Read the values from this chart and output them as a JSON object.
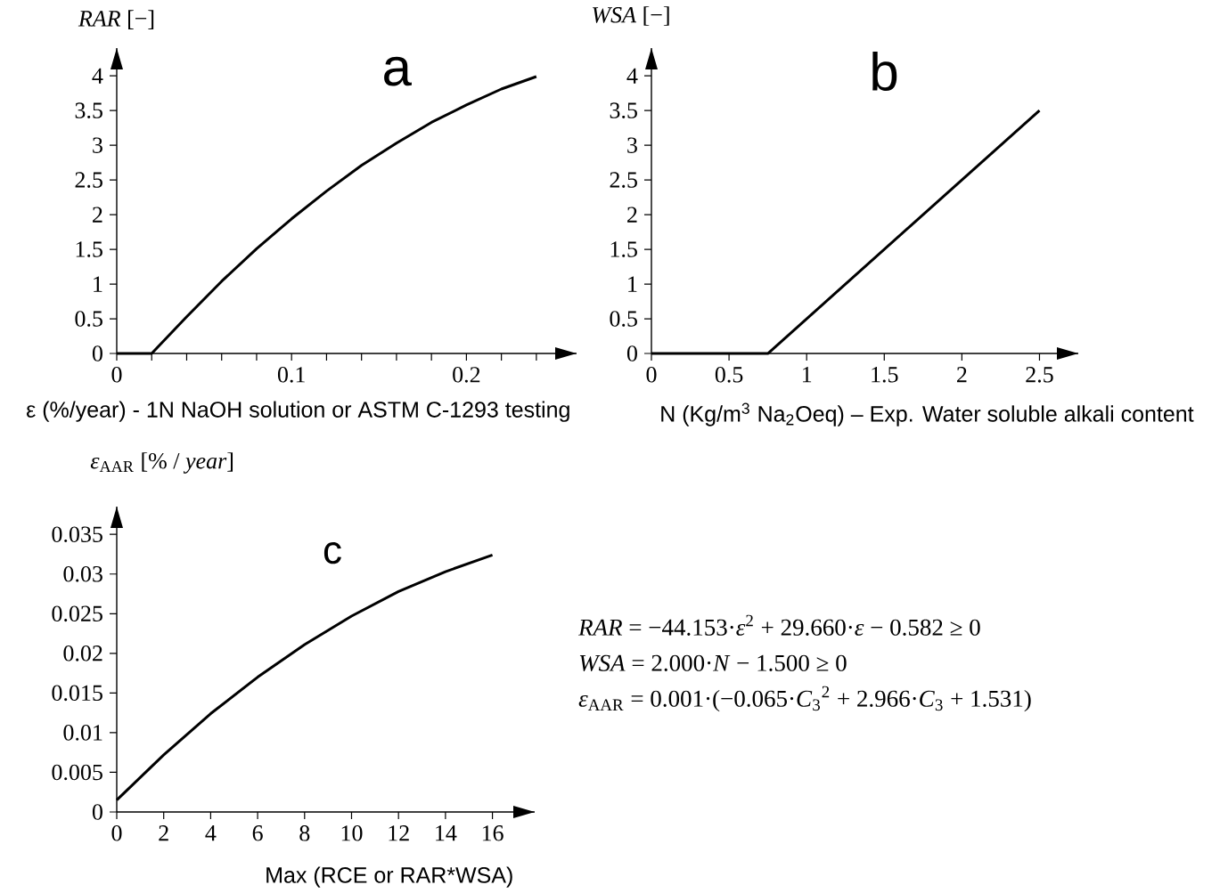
{
  "chart_data": [
    {
      "type": "line",
      "title": "a",
      "xlabel": "ε (%/year) - 1N NaOH solution or ASTM C-1293 testing",
      "ylabel": "*RAR* [−]",
      "x": [
        0,
        0.02,
        0.04,
        0.06,
        0.08,
        0.1,
        0.12,
        0.14,
        0.16,
        0.18,
        0.2,
        0.22,
        0.24
      ],
      "series": [
        {
          "color": "#000000",
          "values": [
            0,
            0,
            0.53,
            1.04,
            1.51,
            1.94,
            2.34,
            2.71,
            3.03,
            3.33,
            3.58,
            3.81,
            3.99
          ]
        }
      ],
      "xlim": [
        0,
        0.263
      ],
      "ylim": [
        0,
        4.4
      ],
      "xticks": [
        0,
        {
          "value": 0.02,
          "label": null
        },
        {
          "value": 0.04,
          "label": null
        },
        {
          "value": 0.06,
          "label": null
        },
        {
          "value": 0.08,
          "label": null
        },
        0.1,
        {
          "value": 0.12,
          "label": null
        },
        {
          "value": 0.14,
          "label": null
        },
        {
          "value": 0.16,
          "label": null
        },
        {
          "value": 0.18,
          "label": null
        },
        0.2,
        {
          "value": 0.22,
          "label": null
        },
        {
          "value": 0.24,
          "label": null
        }
      ],
      "yticks": [
        0,
        0.5,
        1,
        1.5,
        2,
        2.5,
        3,
        3.5,
        4
      ]
    },
    {
      "type": "line",
      "title": "b",
      "xlabel": "N (Kg/m$^{3}$ Na$_{2}$Oeq) – Exp. Water soluble alkali content",
      "ylabel": "*WSA* [−]",
      "x": [
        0,
        0.75,
        2.5
      ],
      "series": [
        {
          "color": "#000000",
          "values": [
            0,
            0,
            3.5
          ]
        }
      ],
      "xlim": [
        0,
        2.75
      ],
      "ylim": [
        0,
        4.4
      ],
      "xticks": [
        0,
        0.5,
        1,
        1.5,
        2,
        2.5
      ],
      "yticks": [
        0,
        0.5,
        1,
        1.5,
        2,
        2.5,
        3,
        3.5,
        4
      ]
    },
    {
      "type": "line",
      "title": "c",
      "xlabel": "Max (RCE  or  RAR*WSA)",
      "ylabel": "*ε*$_{AAR}$ [% / *year*]",
      "x": [
        0,
        2,
        4,
        6,
        8,
        10,
        12,
        14,
        16
      ],
      "series": [
        {
          "color": "#000000",
          "values": [
            0.0015,
            0.0072,
            0.0124,
            0.017,
            0.0211,
            0.0247,
            0.0278,
            0.0303,
            0.0324
          ]
        }
      ],
      "xlim": [
        0,
        17.8
      ],
      "ylim": [
        0,
        0.0385
      ],
      "xticks": [
        0,
        2,
        4,
        6,
        8,
        10,
        12,
        14,
        16
      ],
      "yticks": [
        0,
        0.005,
        0.01,
        0.015,
        0.02,
        0.025,
        0.03,
        0.035
      ]
    },
    {
      "type": "other",
      "annotations": [
        "*RAR* = −44.153·*ε*$^{2}$ + 29.660·*ε* − 0.582 ≥ 0",
        "*WSA* = 2.000·*N* − 1.500 ≥ 0",
        "*ε*$_{AAR}$ = 0.001·(−0.065·*C*$_{3}$$^{2}$ + 2.966·*C*$_{3}$ + 1.531)"
      ]
    }
  ]
}
